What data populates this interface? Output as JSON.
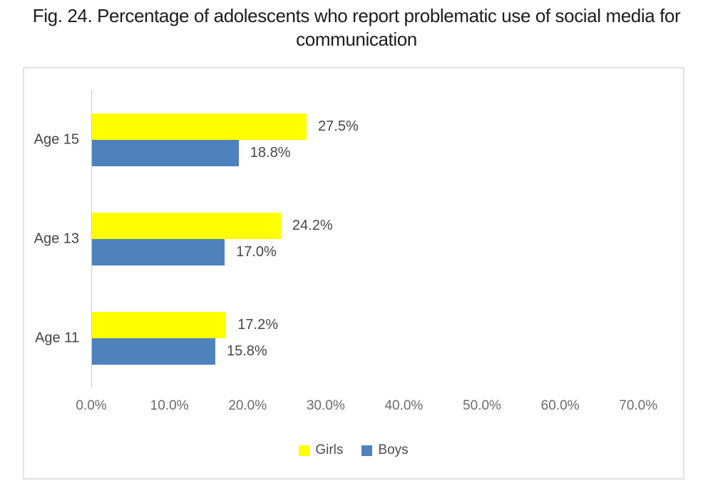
{
  "title": "Fig. 24. Percentage of adolescents who report problematic use of social media for communication",
  "chart_data": {
    "type": "bar",
    "orientation": "horizontal",
    "title": "Fig. 24. Percentage of adolescents who report problematic use of social media for communication",
    "categories": [
      "Age 15",
      "Age 13",
      "Age 11"
    ],
    "series": [
      {
        "name": "Girls",
        "color": "#ffff00",
        "values": [
          27.5,
          24.2,
          17.2
        ],
        "labels": [
          "27.5%",
          "24.2%",
          "17.2%"
        ]
      },
      {
        "name": "Boys",
        "color": "#4f81bd",
        "values": [
          18.8,
          17.0,
          15.8
        ],
        "labels": [
          "18.8%",
          "17.0%",
          "15.8%"
        ]
      }
    ],
    "x_axis": {
      "ticks": [
        {
          "value": 0,
          "label": "0.0%"
        },
        {
          "value": 10,
          "label": "10.0%"
        },
        {
          "value": 20,
          "label": "20.0%"
        },
        {
          "value": 30,
          "label": "30.0%"
        },
        {
          "value": 40,
          "label": "40.0%"
        },
        {
          "value": 50,
          "label": "50.0%"
        },
        {
          "value": 60,
          "label": "60.0%"
        },
        {
          "value": 70,
          "label": "70.0%"
        }
      ],
      "max": 75
    },
    "legend": {
      "position": "bottom",
      "entries": [
        "Girls",
        "Boys"
      ]
    },
    "grid": false,
    "value_labels_shown": true
  }
}
